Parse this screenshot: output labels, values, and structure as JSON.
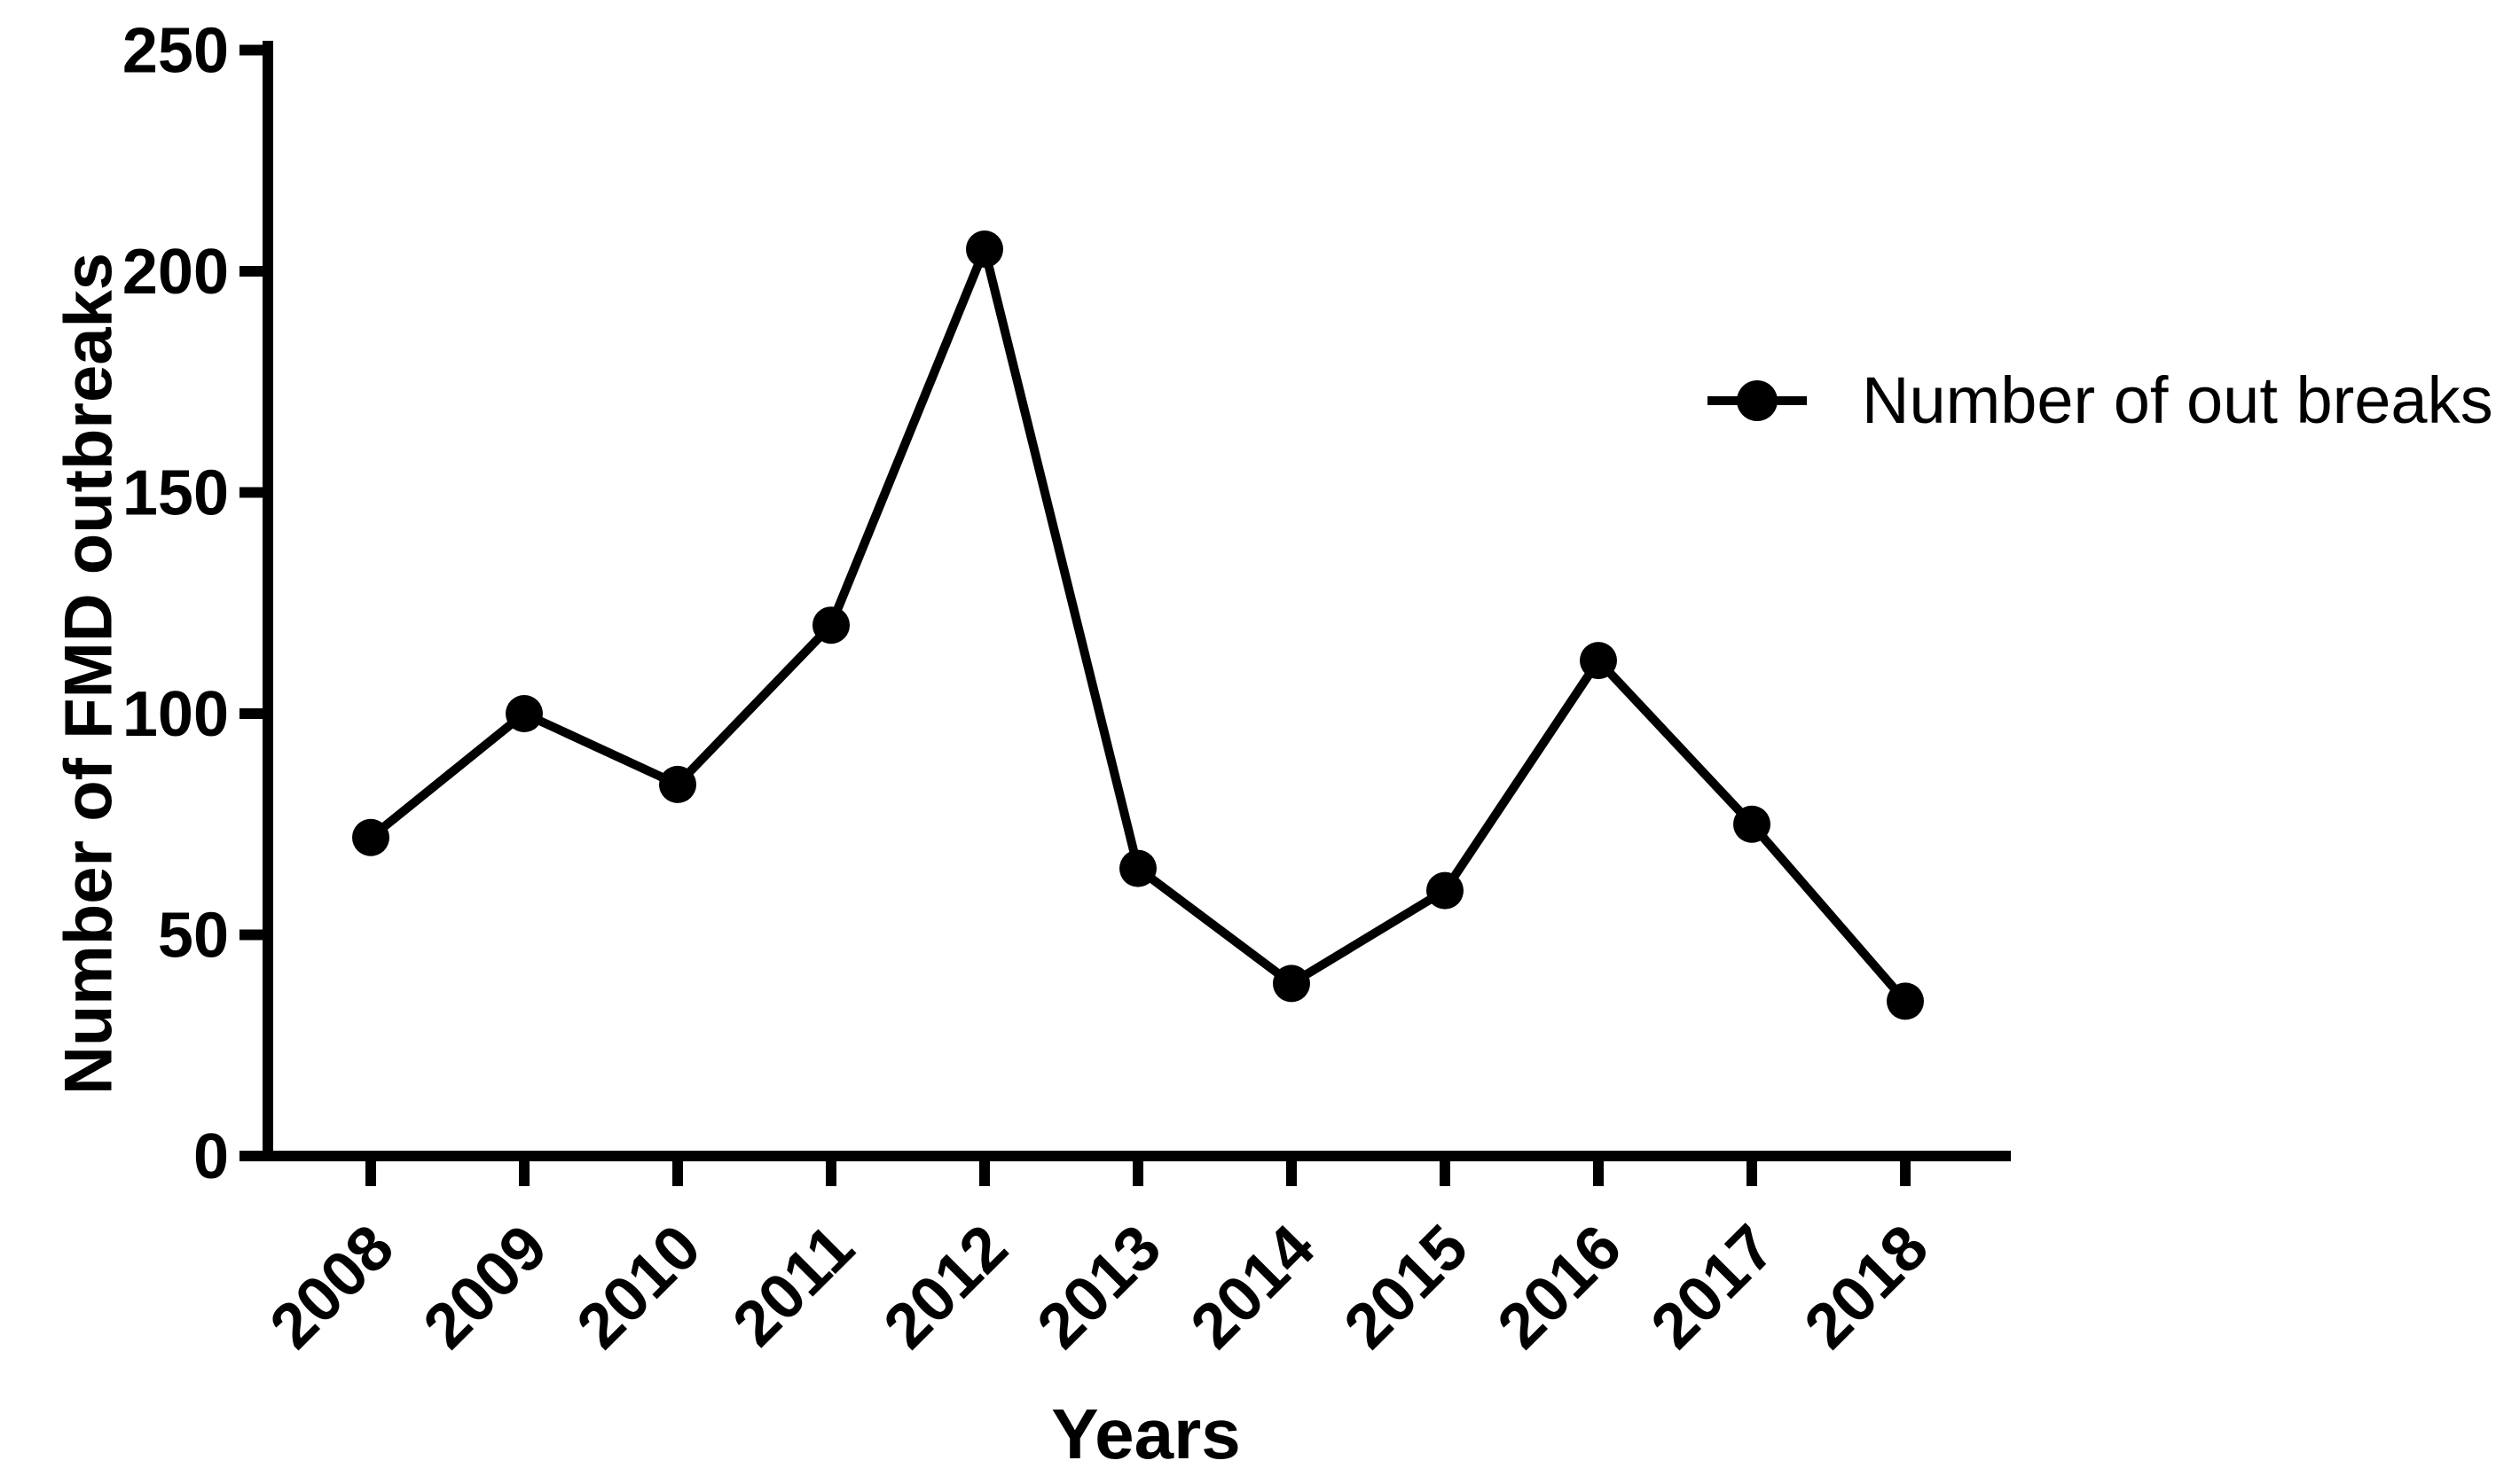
{
  "chart_data": {
    "type": "line",
    "title": "",
    "categories": [
      "2008",
      "2009",
      "2010",
      "2011",
      "2012",
      "2013",
      "2014",
      "2015",
      "2016",
      "2017",
      "2018"
    ],
    "series": [
      {
        "name": "Number of out breaks",
        "values": [
          72,
          100,
          84,
          120,
          205,
          65,
          39,
          60,
          112,
          75,
          35
        ],
        "marker": "filled-circle",
        "color": "#000000"
      }
    ],
    "xlabel": "Years",
    "ylabel": "Number of FMD outbreaks",
    "ylim": [
      0,
      250
    ],
    "yticks": [
      0,
      50,
      100,
      150,
      200,
      250
    ],
    "x_tick_rotation_deg": -45,
    "grid": false,
    "legend": {
      "position": "right",
      "entries": [
        {
          "label": "Number of out breaks",
          "marker": "filled-circle",
          "color": "#000000"
        }
      ]
    },
    "axis_color": "#000000",
    "background": "#ffffff"
  }
}
